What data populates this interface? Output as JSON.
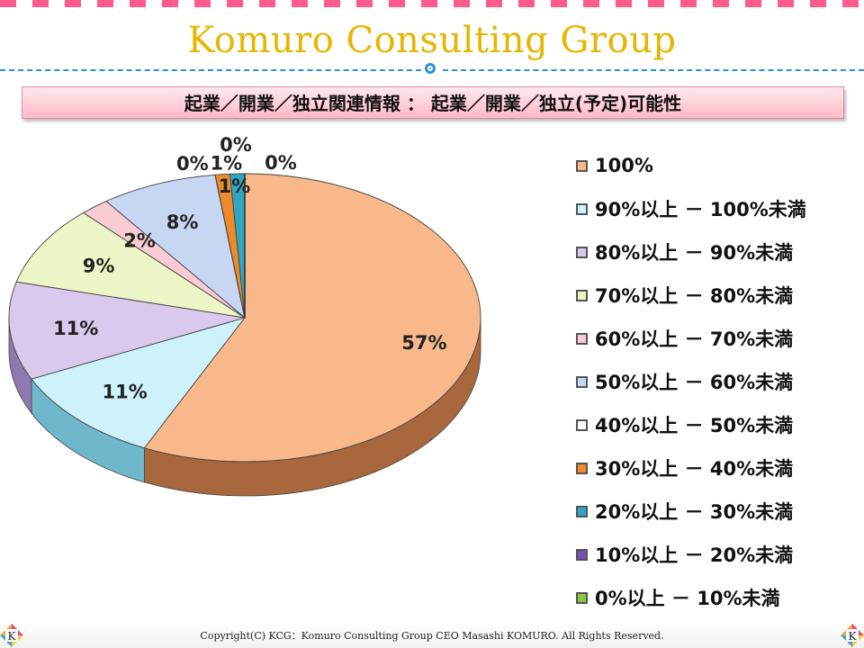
{
  "header": {
    "title": "Komuro Consulting Group"
  },
  "slide": {
    "subtitle": "起業／開業／独立関連情報 ： 起業／開業／独立(予定)可能性"
  },
  "footer": {
    "copyright": "Copyright(C)  KCG：Komuro Consulting Group  CEO Masashi KOMURO. All Rights Reserved.",
    "corner_logo_letter": "K"
  },
  "colors": {
    "title": "#e8b500",
    "divider": "#2d8fd9",
    "subtitle_bg": "#ffb9c6"
  },
  "chart_data": {
    "type": "pie",
    "three_d": true,
    "legend_position": "right",
    "categories": [
      "100%",
      "90%以上 － 100%未満",
      "80%以上 － 90%未満",
      "70%以上 － 80%未満",
      "60%以上 － 70%未満",
      "50%以上 － 60%未満",
      "40%以上 － 50%未満",
      "30%以上 － 40%未満",
      "20%以上 － 30%未満",
      "10%以上 － 20%未満",
      "0%以上 － 10%未満"
    ],
    "values": [
      57,
      11,
      11,
      9,
      2,
      8,
      0,
      1,
      1,
      0,
      0
    ],
    "labels": [
      "57%",
      "11%",
      "11%",
      "9%",
      "2%",
      "8%",
      "0%",
      "1%",
      "1%",
      "0%",
      "0%"
    ],
    "colors": [
      "#f9b88a",
      "#cdf2fb",
      "#d9c9ec",
      "#edf6c6",
      "#f9ccd3",
      "#c6d6f3",
      "#ffffff",
      "#ee8a28",
      "#2fa7c4",
      "#7a4fb4",
      "#8cc63e"
    ],
    "dark_colors": [
      "#a8673c",
      "#6fb8cc",
      "#8f79b0",
      "#a2b478",
      "#c08890",
      "#7f93bd",
      "#aaaaaa",
      "#a8560d",
      "#1c6f85",
      "#4d2f7e",
      "#5b8a22"
    ]
  }
}
